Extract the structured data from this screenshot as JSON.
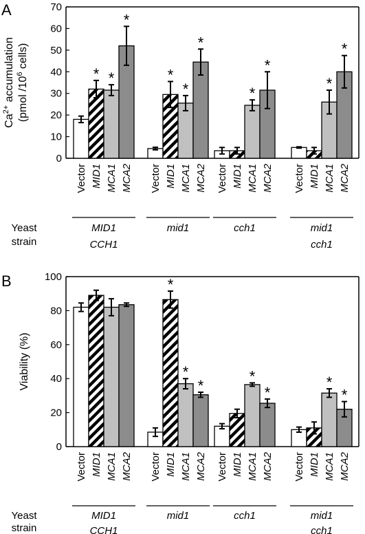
{
  "chart_data": [
    {
      "panel": "A",
      "type": "bar",
      "ylabel_line1": "Ca",
      "ylabel_sup1": "2+",
      "ylabel_rest1": " accumulation",
      "ylabel_line2": "(pmol /10",
      "ylabel_sup2": "6",
      "ylabel_rest2": " cells)",
      "ylim": [
        0,
        70
      ],
      "yticks": [
        "0",
        "10",
        "20",
        "30",
        "40",
        "50",
        "60",
        "70"
      ],
      "categories": [
        "Vector",
        "MID1",
        "MCA1",
        "MCA2"
      ],
      "groups": [
        {
          "strain_line1": "MID1",
          "strain_line2": "CCH1",
          "values": [
            18,
            32,
            31.5,
            52
          ],
          "errors": [
            1.5,
            4,
            2.5,
            9
          ],
          "significant": [
            false,
            true,
            true,
            true
          ]
        },
        {
          "strain_line1": "mid1",
          "strain_line2": "",
          "values": [
            4.5,
            29.5,
            25.5,
            44.5
          ],
          "errors": [
            0.6,
            6,
            3.5,
            6
          ],
          "significant": [
            false,
            true,
            true,
            true
          ]
        },
        {
          "strain_line1": "cch1",
          "strain_line2": "",
          "values": [
            3.5,
            3.5,
            24.5,
            31.5
          ],
          "errors": [
            1.5,
            1.5,
            2.5,
            8.5
          ],
          "significant": [
            false,
            false,
            true,
            true
          ]
        },
        {
          "strain_line1": "mid1",
          "strain_line2": "cch1",
          "values": [
            5,
            3.5,
            26,
            40
          ],
          "errors": [
            0.3,
            1.5,
            5.5,
            7.5
          ],
          "significant": [
            false,
            false,
            true,
            true
          ]
        }
      ]
    },
    {
      "panel": "B",
      "type": "bar",
      "ylabel": "Viability (%)",
      "ylim": [
        0,
        100
      ],
      "yticks": [
        "0",
        "20",
        "40",
        "60",
        "80",
        "100"
      ],
      "categories": [
        "Vector",
        "MID1",
        "MCA1",
        "MCA2"
      ],
      "groups": [
        {
          "strain_line1": "MID1",
          "strain_line2": "CCH1",
          "values": [
            82,
            89,
            82,
            83.5
          ],
          "errors": [
            2.5,
            3,
            5,
            1
          ],
          "significant": [
            false,
            false,
            false,
            false
          ]
        },
        {
          "strain_line1": "mid1",
          "strain_line2": "",
          "values": [
            8.5,
            86.5,
            37,
            30.5
          ],
          "errors": [
            2.5,
            5,
            3,
            1.5
          ],
          "significant": [
            false,
            true,
            true,
            true
          ]
        },
        {
          "strain_line1": "cch1",
          "strain_line2": "",
          "values": [
            12,
            19.5,
            36.5,
            25.5
          ],
          "errors": [
            1.5,
            2.5,
            1,
            2.5
          ],
          "significant": [
            false,
            false,
            true,
            true
          ]
        },
        {
          "strain_line1": "mid1",
          "strain_line2": "cch1",
          "values": [
            10,
            11,
            31.5,
            22
          ],
          "errors": [
            1.5,
            3.5,
            2.5,
            4.5
          ],
          "significant": [
            false,
            false,
            true,
            true
          ]
        }
      ]
    }
  ],
  "labels": {
    "yeast_strain_line1": "Yeast",
    "yeast_strain_line2": "strain",
    "significance_marker": "*"
  },
  "colors": {
    "vector": "#ffffff",
    "mid1_stripe": "#000000",
    "mca1": "#c0c0c0",
    "mca2": "#8c8c8c"
  }
}
